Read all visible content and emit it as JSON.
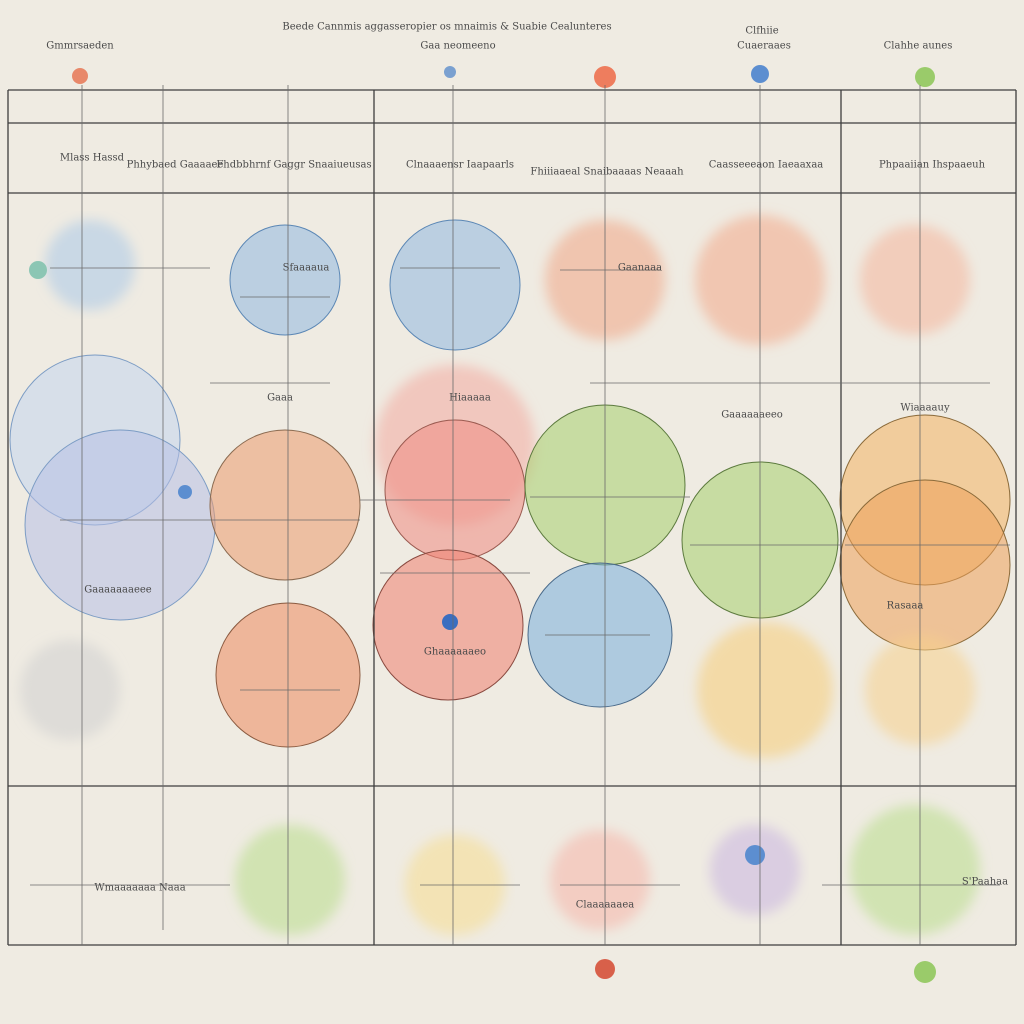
{
  "header": {
    "title": "Beede Cannmis aggasseropier os mnaimis & Suabie Cealunteres",
    "labels": [
      "Gmmrsaeden",
      "Gaa neomeeno",
      "Clfhiie",
      "Cuaeraaes",
      "Clahhe aunes"
    ]
  },
  "columns": [
    "Mlass Hassd",
    "Phhybaed Gaaaaee",
    "Fhdbbhrnf Gaggr Snaaiueusas",
    "Clnaaaensr Iaapaarls",
    "Fhiiiaaeal Snaibaaaas Neaaah",
    "Caasseeeaon Iaeaaxaa",
    "Phpaaiian Ihspaaeuh"
  ],
  "annotations": [
    "Gaaa",
    "Hiaaaaa",
    "Wiaaaauy",
    "Gaaaaaaeeo",
    "Ghaaaaaaeo",
    "Rasaaa",
    "Sfaaaaua",
    "Gaanaaa",
    "Wmaaaaaaa Naaa",
    "Claaaaaaea",
    "S'Paahaa",
    "Gaaaaaaaeee"
  ]
}
